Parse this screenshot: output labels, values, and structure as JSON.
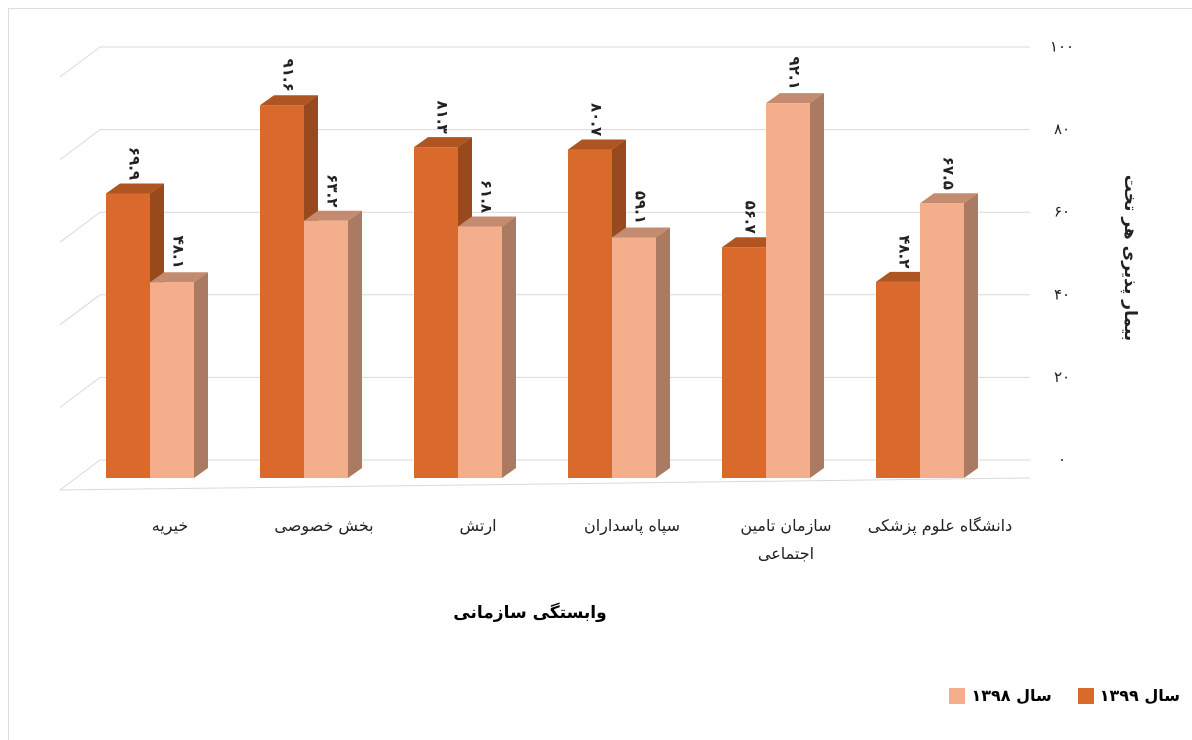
{
  "chart_data": {
    "type": "bar3d",
    "x_label": "وابستگی سازمانی",
    "y_label": "بیمار پذیری هر تخت",
    "categories": [
      "دانشگاه علوم پزشکی",
      "سازمان تامین اجتماعی",
      "سپاه پاسداران",
      "ارتش",
      "بخش خصوصی",
      "خیریه"
    ],
    "series": [
      {
        "name": "سال ۱۳۹۹",
        "color": "#d96a2b",
        "values": [
          48.2,
          56.7,
          80.7,
          81.3,
          91.6,
          69.9
        ],
        "value_labels": [
          "۴۸.۲",
          "۵۶.۷",
          "۸۰.۷",
          "۸۱.۳",
          "۹۱.۶",
          "۶۹.۹"
        ]
      },
      {
        "name": "سال ۱۳۹۸",
        "color": "#f4ae8c",
        "values": [
          67.5,
          92.1,
          59.1,
          61.8,
          63.2,
          48.1
        ],
        "value_labels": [
          "۶۷.۵",
          "۹۲.۱",
          "۵۹.۱",
          "۶۱.۸",
          "۶۳.۲",
          "۴۸.۱"
        ]
      }
    ],
    "ylim": [
      0,
      100
    ],
    "yticks": [
      {
        "value": 0,
        "label": "۰"
      },
      {
        "value": 20,
        "label": "۲۰"
      },
      {
        "value": 40,
        "label": "۴۰"
      },
      {
        "value": 60,
        "label": "۶۰"
      },
      {
        "value": 80,
        "label": "۸۰"
      },
      {
        "value": 100,
        "label": "۱۰۰"
      }
    ],
    "grid": true,
    "legend": "bottom-right"
  }
}
